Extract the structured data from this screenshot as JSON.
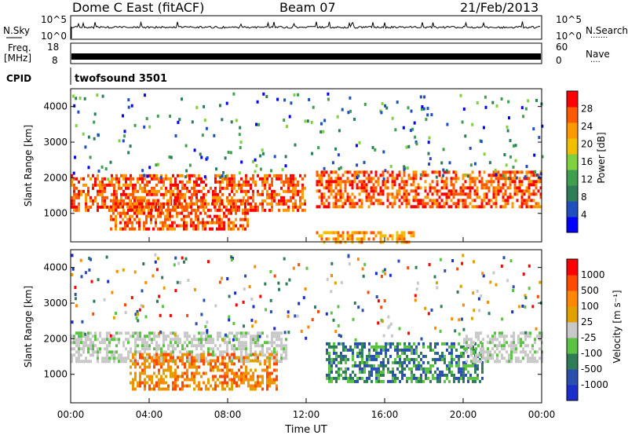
{
  "header": {
    "station": "Dome C East (fitACF)",
    "beam": "Beam 07",
    "date": "21/Feb/2013"
  },
  "nsky_panel": {
    "label": "N.Sky",
    "ytick_top": "10^5",
    "ytick_bottom": "10^0",
    "right_label": "N.Search",
    "right_dots": "·······"
  },
  "freq_panel": {
    "label_line1": "Freq.",
    "label_line2": "[MHz]",
    "left_top": "18",
    "left_bottom": "8",
    "right_top": "60",
    "right_bottom": "0",
    "right_label": "Nave",
    "right_dots": "····"
  },
  "cpid_panel": {
    "label": "CPID",
    "program": "twofsound 3501"
  },
  "colors": {
    "power_scale": [
      "#0000ff",
      "#1f4fbf",
      "#2e7d57",
      "#3f9f4f",
      "#7fd13f",
      "#f0c000",
      "#ff9900",
      "#ff5a00",
      "#ff0000"
    ],
    "velocity_scale": [
      "#1a2ecc",
      "#2a4fae",
      "#2e7d57",
      "#5cc244",
      "#c8c8c8",
      "#e0a000",
      "#ff8800",
      "#ff4a00",
      "#ff0000"
    ]
  },
  "chart_data": [
    {
      "type": "heatmap",
      "name": "power",
      "ylabel": "Slant Range [km]",
      "yticks": [
        "1000",
        "2000",
        "3000",
        "4000"
      ],
      "ylim": [
        200,
        4500
      ],
      "xlim": [
        0,
        24
      ],
      "colorbar_label": "Power [dB]",
      "colorbar_ticks": [
        "4",
        "8",
        "12",
        "16",
        "20",
        "24",
        "28"
      ],
      "colorbar_range": [
        0,
        32
      ],
      "echo_bands": [
        {
          "t0": 0.0,
          "t1": 12.0,
          "r0": 1100,
          "r1": 2100,
          "level": "high"
        },
        {
          "t0": 12.5,
          "t1": 24.0,
          "r0": 1200,
          "r1": 2200,
          "level": "high"
        },
        {
          "t0": 2.0,
          "t1": 9.0,
          "r0": 600,
          "r1": 1400,
          "level": "high"
        },
        {
          "t0": 12.5,
          "t1": 17.5,
          "r0": 200,
          "r1": 500,
          "level": "mid"
        }
      ]
    },
    {
      "type": "heatmap",
      "name": "velocity",
      "ylabel": "Slant Range [km]",
      "yticks": [
        "1000",
        "2000",
        "3000",
        "4000"
      ],
      "ylim": [
        200,
        4500
      ],
      "xlim": [
        0,
        24
      ],
      "xticks": [
        "00:00",
        "04:00",
        "08:00",
        "12:00",
        "16:00",
        "20:00",
        "00:00"
      ],
      "xlabel": "Time UT",
      "colorbar_label": "Velocity [m s⁻¹]",
      "colorbar_ticks": [
        "-1000",
        "-500",
        "-100",
        "-25",
        "25",
        "100",
        "500",
        "1000"
      ],
      "echo_bands": [
        {
          "t0": 0.0,
          "t1": 11.0,
          "r0": 1400,
          "r1": 2200,
          "level": "neutral"
        },
        {
          "t0": 3.0,
          "t1": 10.5,
          "r0": 600,
          "r1": 1600,
          "level": "away"
        },
        {
          "t0": 13.0,
          "t1": 21.0,
          "r0": 800,
          "r1": 1900,
          "level": "toward"
        },
        {
          "t0": 20.0,
          "t1": 24.0,
          "r0": 1400,
          "r1": 2200,
          "level": "neutral"
        }
      ]
    }
  ]
}
